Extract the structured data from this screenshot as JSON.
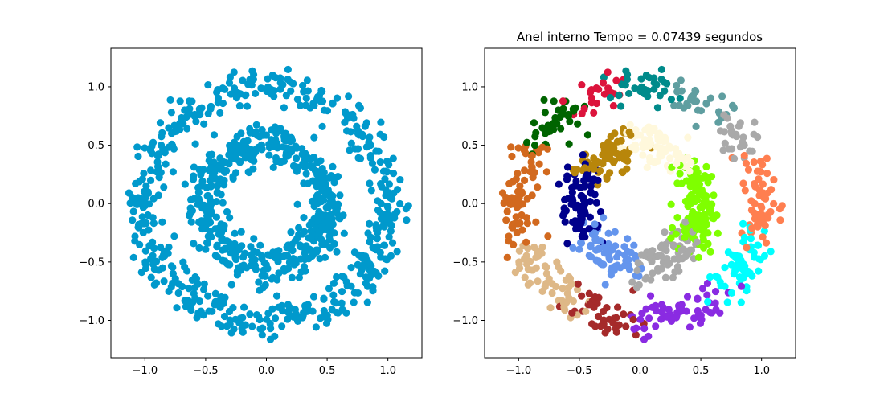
{
  "chart_data": [
    {
      "type": "scatter",
      "title": "",
      "xlim": [
        -1.28,
        1.28
      ],
      "ylim": [
        -1.32,
        1.33
      ],
      "xticks": [
        -1.0,
        -0.5,
        0.0,
        0.5,
        1.0
      ],
      "yticks": [
        -1.0,
        -0.5,
        0.0,
        0.5,
        1.0
      ],
      "xtick_labels": [
        "−1.0",
        "−0.5",
        "0.0",
        "0.5",
        "1.0"
      ],
      "ytick_labels": [
        "−1.0",
        "−0.5",
        "0.0",
        "0.5",
        "1.0"
      ],
      "point_color": "#0099cc",
      "rings": [
        {
          "name": "outer",
          "radius": 1.0,
          "noise": 0.08,
          "count": 500
        },
        {
          "name": "inner",
          "radius": 0.5,
          "noise": 0.08,
          "count": 500
        }
      ]
    },
    {
      "type": "scatter",
      "title": "Anel interno Tempo = 0.07439 segundos",
      "xlim": [
        -1.28,
        1.28
      ],
      "ylim": [
        -1.32,
        1.33
      ],
      "xticks": [
        -1.0,
        -0.5,
        0.0,
        0.5,
        1.0
      ],
      "yticks": [
        -1.0,
        -0.5,
        0.0,
        0.5,
        1.0
      ],
      "xtick_labels": [
        "−1.0",
        "−0.5",
        "0.0",
        "0.5",
        "1.0"
      ],
      "ytick_labels": [
        "−1.0",
        "−0.5",
        "0.0",
        "0.5",
        "1.0"
      ],
      "clusters": [
        {
          "ring": "outer",
          "angle_start": 75,
          "angle_end": 100,
          "color": "#008b8b"
        },
        {
          "ring": "outer",
          "angle_start": 100,
          "angle_end": 122,
          "color": "#dc143c"
        },
        {
          "ring": "outer",
          "angle_start": 122,
          "angle_end": 150,
          "color": "#006400"
        },
        {
          "ring": "outer",
          "angle_start": 150,
          "angle_end": 200,
          "color": "#d2691e"
        },
        {
          "ring": "outer",
          "angle_start": 200,
          "angle_end": 238,
          "color": "#deb887"
        },
        {
          "ring": "outer",
          "angle_start": 238,
          "angle_end": 268,
          "color": "#a52a2a"
        },
        {
          "ring": "outer",
          "angle_start": 268,
          "angle_end": 310,
          "color": "#8a2be2"
        },
        {
          "ring": "outer",
          "angle_start": 310,
          "angle_end": 345,
          "color": "#00ffff"
        },
        {
          "ring": "outer",
          "angle_start": 345,
          "angle_end": 385,
          "color": "#ff7f50"
        },
        {
          "ring": "outer",
          "angle_start": 385,
          "angle_end": 408,
          "color": "#a9a9a9"
        },
        {
          "ring": "outer",
          "angle_start": 408,
          "angle_end": 435,
          "color": "#5f9ea0"
        },
        {
          "ring": "inner",
          "angle_start": 40,
          "angle_end": 100,
          "color": "#fff8dc"
        },
        {
          "ring": "inner",
          "angle_start": 100,
          "angle_end": 150,
          "color": "#b8860b"
        },
        {
          "ring": "inner",
          "angle_start": 150,
          "angle_end": 210,
          "color": "#00008b"
        },
        {
          "ring": "inner",
          "angle_start": 210,
          "angle_end": 265,
          "color": "#6495ed"
        },
        {
          "ring": "inner",
          "angle_start": 265,
          "angle_end": 320,
          "color": "#a9a9a9"
        },
        {
          "ring": "inner",
          "angle_start": 320,
          "angle_end": 400,
          "color": "#7fff00"
        }
      ]
    }
  ]
}
